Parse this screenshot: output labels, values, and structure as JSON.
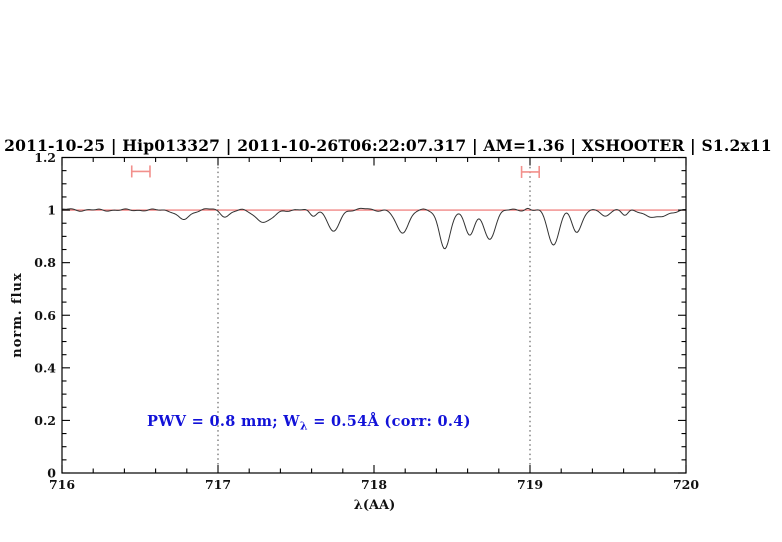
{
  "figure": {
    "title": "2011-10-25 | Hip013327 | 2011-10-26T06:22:07.317 | AM=1.36 | XSHOOTER | S1.2x11",
    "title_color": "#1212d8",
    "annotation": {
      "pre": "PWV  =  0.8  mm;  W",
      "sub": "λ",
      "post": "  =  0.54Å  (corr: 0.4)",
      "color": "#1212d8"
    }
  },
  "chart_data": {
    "type": "line",
    "title": "2011-10-25 | Hip013327 | 2011-10-26T06:22:07.317 | AM=1.36 | XSHOOTER | S1.2x11",
    "xlabel": "λ(AA)",
    "ylabel": "norm. flux",
    "xlim": [
      716,
      720
    ],
    "ylim": [
      0,
      1.2
    ],
    "x_major_ticks": [
      716,
      717,
      718,
      719,
      720
    ],
    "x_tick_labels": [
      "716",
      "717",
      "718",
      "719",
      "720"
    ],
    "x_minor_step": 0.2,
    "y_major_ticks": [
      0,
      0.2,
      0.4,
      0.6,
      0.8,
      1,
      1.2
    ],
    "y_tick_labels": [
      "0",
      "0.2",
      "0.4",
      "0.6",
      "0.8",
      "1",
      "1.2"
    ],
    "y_minor_step": 0.05,
    "grid": false,
    "legend": null,
    "continuum_level": 1.0,
    "continuum_color": "#ee6c6b",
    "spectrum_color": "#333333",
    "dotted_guide_lines_x": [
      717,
      719
    ],
    "dotted_line_color": "#444444",
    "range_markers": [
      {
        "x_min": 716.447,
        "x_max": 716.564,
        "y": 1.147
      },
      {
        "x_min": 718.946,
        "x_max": 719.059,
        "y": 1.145
      }
    ],
    "marker_color": "#f2908c",
    "sample_step": 0.008,
    "absorption_lines": [
      {
        "center": 716.78,
        "depth": 0.037,
        "sigma": 0.04
      },
      {
        "center": 717.045,
        "depth": 0.024,
        "sigma": 0.03
      },
      {
        "center": 717.27,
        "depth": 0.03,
        "sigma": 0.045
      },
      {
        "center": 717.33,
        "depth": 0.028,
        "sigma": 0.04
      },
      {
        "center": 717.61,
        "depth": 0.02,
        "sigma": 0.022
      },
      {
        "center": 717.74,
        "depth": 0.085,
        "sigma": 0.035
      },
      {
        "center": 718.18,
        "depth": 0.085,
        "sigma": 0.04
      },
      {
        "center": 718.455,
        "depth": 0.147,
        "sigma": 0.035
      },
      {
        "center": 718.615,
        "depth": 0.092,
        "sigma": 0.032
      },
      {
        "center": 718.74,
        "depth": 0.112,
        "sigma": 0.035
      },
      {
        "center": 719.15,
        "depth": 0.132,
        "sigma": 0.035
      },
      {
        "center": 719.3,
        "depth": 0.086,
        "sigma": 0.03
      },
      {
        "center": 719.48,
        "depth": 0.026,
        "sigma": 0.025
      },
      {
        "center": 719.61,
        "depth": 0.02,
        "sigma": 0.02
      },
      {
        "center": 719.81,
        "depth": 0.03,
        "sigma": 0.065
      }
    ],
    "emission_bumps": [
      {
        "center": 716.05,
        "height": 0.004,
        "sigma": 0.02
      },
      {
        "center": 716.93,
        "height": 0.005,
        "sigma": 0.03
      },
      {
        "center": 717.95,
        "height": 0.005,
        "sigma": 0.03
      },
      {
        "center": 718.985,
        "height": 0.007,
        "sigma": 0.015
      },
      {
        "center": 719.545,
        "height": 0.004,
        "sigma": 0.02
      }
    ],
    "noise_waves": [
      {
        "amp": 0.0028,
        "period": 0.19,
        "phase": 0.8
      },
      {
        "amp": 0.0018,
        "period": 0.083,
        "phase": 2.0
      }
    ]
  }
}
